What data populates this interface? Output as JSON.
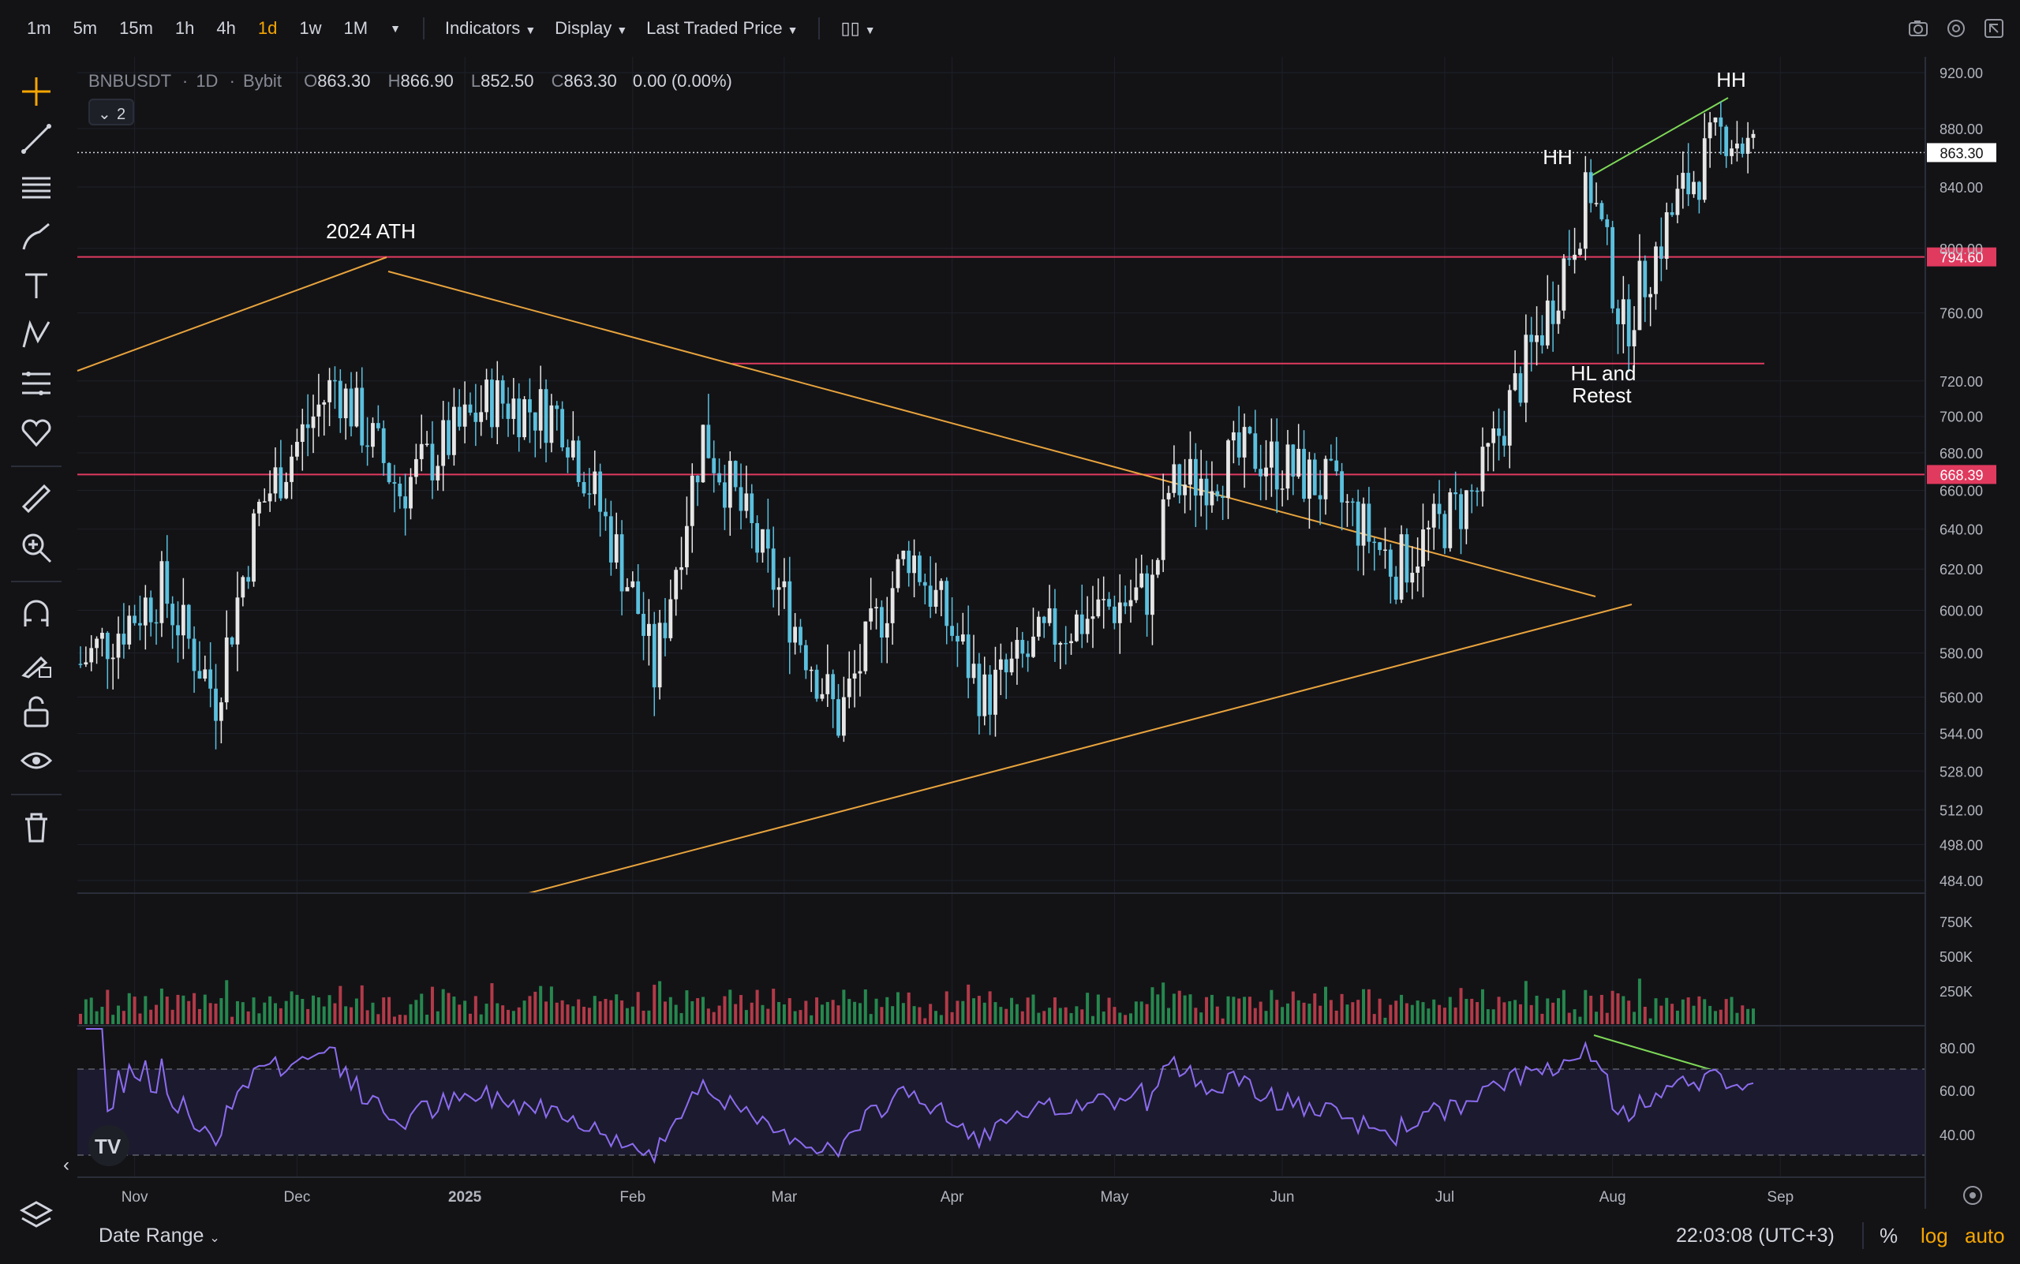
{
  "toolbar": {
    "timeframes": [
      "1m",
      "5m",
      "15m",
      "1h",
      "4h",
      "1d",
      "1w",
      "1M"
    ],
    "active_timeframe": "1d",
    "indicators_label": "Indicators",
    "display_label": "Display",
    "price_type_label": "Last Traded Price"
  },
  "legend": {
    "symbol": "BNBUSDT",
    "interval": "1D",
    "exchange": "Bybit",
    "open_label": "O",
    "open": "863.30",
    "high_label": "H",
    "high": "866.90",
    "low_label": "L",
    "low": "852.50",
    "close_label": "C",
    "close": "863.30",
    "change": "0.00 (0.00%)",
    "indicator_count": "2"
  },
  "bottom": {
    "date_range_label": "Date Range",
    "clock": "22:03:08 (UTC+3)",
    "percent_label": "%",
    "log_label": "log",
    "auto_label": "auto"
  },
  "colors": {
    "background": "#131316",
    "bull": "#e6e6e6",
    "bear": "#5bc0de",
    "level": "#e03a5f",
    "trendline": "#e8a33d",
    "hh_line": "#7ed957",
    "rsi": "#8c6cf0",
    "vol_up": "#26874e",
    "vol_down": "#b23a48",
    "active": "#f7a600"
  },
  "chart_data": {
    "type": "candlestick",
    "scale": "log",
    "price_axis_ticks": [
      "920.00",
      "880.00",
      "840.00",
      "800.00",
      "760.00",
      "720.00",
      "700.00",
      "680.00",
      "660.00",
      "640.00",
      "620.00",
      "600.00",
      "580.00",
      "560.00",
      "544.00",
      "528.00",
      "512.00",
      "498.00",
      "484.00"
    ],
    "x_axis_labels": [
      "Nov",
      "Dec",
      "2025",
      "Feb",
      "Mar",
      "Apr",
      "May",
      "Jun",
      "Jul",
      "Aug",
      "Sep"
    ],
    "current_price": "863.30",
    "levels": [
      {
        "price": 794.6,
        "label": "794.60"
      },
      {
        "price": 668.39,
        "label": "668.39"
      },
      {
        "price": 730.0,
        "label": ""
      }
    ],
    "annotations": [
      {
        "text": "2024 ATH"
      },
      {
        "text": "HH"
      },
      {
        "text": "HH"
      },
      {
        "text": "HL and"
      },
      {
        "text": "Retest"
      }
    ],
    "key_prices": [
      {
        "date": "2024-10-22",
        "price": 575
      },
      {
        "date": "2024-11-06",
        "price": 610
      },
      {
        "date": "2024-11-16",
        "price": 560
      },
      {
        "date": "2024-11-24",
        "price": 650
      },
      {
        "date": "2024-12-04",
        "price": 700
      },
      {
        "date": "2024-12-08",
        "price": 720
      },
      {
        "date": "2024-12-20",
        "price": 660
      },
      {
        "date": "2025-01-06",
        "price": 710
      },
      {
        "date": "2025-01-19",
        "price": 700
      },
      {
        "date": "2025-02-02",
        "price": 600
      },
      {
        "date": "2025-02-05",
        "price": 570
      },
      {
        "date": "2025-02-14",
        "price": 690
      },
      {
        "date": "2025-02-26",
        "price": 620
      },
      {
        "date": "2025-03-11",
        "price": 550
      },
      {
        "date": "2025-03-24",
        "price": 630
      },
      {
        "date": "2025-04-07",
        "price": 560
      },
      {
        "date": "2025-04-20",
        "price": 590
      },
      {
        "date": "2025-05-08",
        "price": 610
      },
      {
        "date": "2025-05-11",
        "price": 660
      },
      {
        "date": "2025-05-27",
        "price": 680
      },
      {
        "date": "2025-06-10",
        "price": 660
      },
      {
        "date": "2025-06-22",
        "price": 620
      },
      {
        "date": "2025-07-07",
        "price": 660
      },
      {
        "date": "2025-07-20",
        "price": 760
      },
      {
        "date": "2025-07-28",
        "price": 840
      },
      {
        "date": "2025-08-03",
        "price": 750
      },
      {
        "date": "2025-08-13",
        "price": 830
      },
      {
        "date": "2025-08-22",
        "price": 880
      },
      {
        "date": "2025-08-27",
        "price": 863
      }
    ],
    "volume_axis_ticks": [
      "750K",
      "500K",
      "250K"
    ],
    "rsi_axis_ticks": [
      "80.00",
      "60.00",
      "40.00"
    ],
    "rsi_bands": [
      70,
      30
    ]
  }
}
